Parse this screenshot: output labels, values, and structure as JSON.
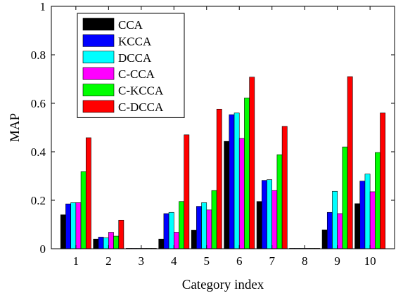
{
  "chart_data": {
    "type": "bar",
    "categories": [
      "1",
      "2",
      "3",
      "4",
      "5",
      "6",
      "7",
      "8",
      "9",
      "10"
    ],
    "xlabel": "Category index",
    "ylabel": "MAP",
    "ylim": [
      0,
      1
    ],
    "yticks": [
      "0",
      "0.2",
      "0.4",
      "0.6",
      "0.8",
      "1"
    ],
    "grid": false,
    "legend": "top-left",
    "series": [
      {
        "name": "CCA",
        "color": "#000000",
        "values": [
          0.14,
          0.04,
          0.0,
          0.04,
          0.077,
          0.443,
          0.195,
          0.0,
          0.078,
          0.186
        ]
      },
      {
        "name": "KCCA",
        "color": "#0000ff",
        "values": [
          0.185,
          0.048,
          0.0,
          0.145,
          0.175,
          0.553,
          0.282,
          0.0,
          0.15,
          0.279
        ]
      },
      {
        "name": "DCCA",
        "color": "#00ffff",
        "values": [
          0.19,
          0.045,
          0.0,
          0.15,
          0.19,
          0.56,
          0.285,
          0.0,
          0.237,
          0.308
        ]
      },
      {
        "name": "C-CCA",
        "color": "#ff00ff",
        "values": [
          0.19,
          0.068,
          0.0,
          0.068,
          0.16,
          0.455,
          0.24,
          0.0,
          0.145,
          0.235
        ]
      },
      {
        "name": "C-KCCA",
        "color": "#00ff00",
        "values": [
          0.318,
          0.052,
          0.0,
          0.195,
          0.24,
          0.622,
          0.388,
          0.0,
          0.42,
          0.397
        ]
      },
      {
        "name": "C-DCCA",
        "color": "#ff0000",
        "values": [
          0.458,
          0.118,
          0.0,
          0.47,
          0.576,
          0.708,
          0.505,
          0.0,
          0.71,
          0.56
        ]
      }
    ]
  }
}
